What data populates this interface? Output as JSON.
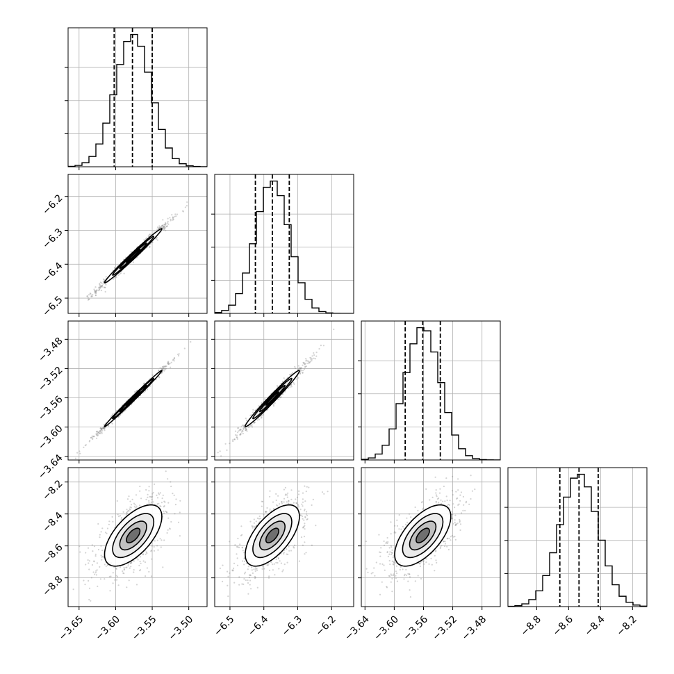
{
  "chart_data": {
    "type": "corner",
    "variables": [
      {
        "range": [
          -3.665,
          -3.475
        ],
        "ticks": [
          -3.65,
          -3.6,
          -3.55,
          -3.5
        ],
        "tick_labels": [
          "−3.65",
          "−3.60",
          "−3.55",
          "−3.50"
        ],
        "quantiles": [
          -3.602,
          -3.577,
          -3.55
        ],
        "mean": -3.576,
        "sd": 0.0245
      },
      {
        "range": [
          -6.545,
          -6.135
        ],
        "ticks": [
          -6.5,
          -6.4,
          -6.3,
          -6.2
        ],
        "tick_labels": [
          "−6.5",
          "−6.4",
          "−6.3",
          "−6.2"
        ],
        "quantiles": [
          -6.425,
          -6.375,
          -6.325
        ],
        "mean": -6.375,
        "sd": 0.05
      },
      {
        "range": [
          -3.645,
          -3.455
        ],
        "ticks": [
          -3.64,
          -3.6,
          -3.56,
          -3.52,
          -3.48
        ],
        "tick_labels": [
          "−3.64",
          "−3.60",
          "−3.56",
          "−3.52",
          "−3.48"
        ],
        "quantiles": [
          -3.585,
          -3.561,
          -3.537
        ],
        "mean": -3.561,
        "sd": 0.024
      },
      {
        "range": [
          -8.98,
          -8.11
        ],
        "ticks": [
          -8.8,
          -8.6,
          -8.4,
          -8.2
        ],
        "tick_labels": [
          "−8.8",
          "−8.6",
          "−8.4",
          "−8.2"
        ],
        "quantiles": [
          -8.655,
          -8.535,
          -8.415
        ],
        "mean": -8.535,
        "sd": 0.12
      }
    ],
    "correlations": {
      "1-0": 0.99,
      "2-0": 0.995,
      "2-1": 0.985,
      "3-0": 0.62,
      "3-1": 0.62,
      "3-2": 0.62
    },
    "histogram_bins": 20,
    "grid": true,
    "contour_levels": 4,
    "colors": {
      "line": "#000000",
      "grid": "#b0b0b0",
      "points": "#808080"
    }
  }
}
